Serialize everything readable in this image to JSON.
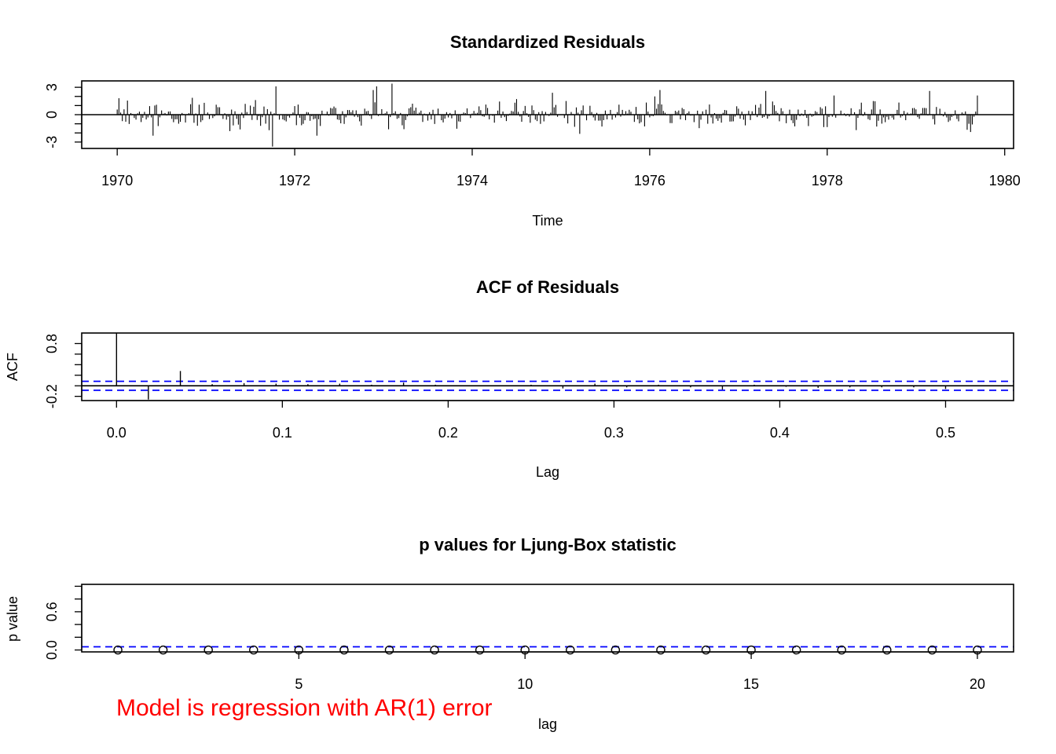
{
  "chart_data": [
    {
      "type": "line",
      "title": "Standardized Residuals",
      "xlabel": "Time",
      "ylabel": "",
      "xlim": [
        1969.6,
        1980.1
      ],
      "ylim": [
        -3.7,
        3.7
      ],
      "xticks": [
        "1970",
        "1972",
        "1974",
        "1976",
        "1978",
        "1980"
      ],
      "yticks": [
        "-3",
        "0",
        "3"
      ],
      "x": {
        "start": 1970.0,
        "end": 1979.7,
        "step": 0.019231
      },
      "series": [
        {
          "style": "vertical-lines-from-zero",
          "color": "#000000",
          "values_description_hint": ""
        }
      ],
      "highlight_spikes": [
        {
          "x": 1970.02,
          "y": 1.8
        },
        {
          "x": 1970.4,
          "y": -2.3
        },
        {
          "x": 1971.26,
          "y": -1.8
        },
        {
          "x": 1971.55,
          "y": 1.6
        },
        {
          "x": 1971.72,
          "y": -1.7
        },
        {
          "x": 1971.75,
          "y": -3.5
        },
        {
          "x": 1971.78,
          "y": 3.1
        },
        {
          "x": 1972.25,
          "y": -2.3
        },
        {
          "x": 1972.88,
          "y": 2.7
        },
        {
          "x": 1972.92,
          "y": 3.1
        },
        {
          "x": 1973.05,
          "y": -1.6
        },
        {
          "x": 1973.1,
          "y": 3.4
        },
        {
          "x": 1974.9,
          "y": 2.4
        },
        {
          "x": 1975.22,
          "y": -2.1
        },
        {
          "x": 1976.05,
          "y": 2.0
        },
        {
          "x": 1976.12,
          "y": 2.7
        },
        {
          "x": 1977.3,
          "y": 2.6
        },
        {
          "x": 1978.08,
          "y": 2.1
        },
        {
          "x": 1979.15,
          "y": 2.6
        },
        {
          "x": 1979.62,
          "y": -1.9
        },
        {
          "x": 1979.7,
          "y": 2.1
        }
      ]
    },
    {
      "type": "bar",
      "title": "ACF of Residuals",
      "xlabel": "Lag",
      "ylabel": "ACF",
      "xlim": [
        -0.021,
        0.541
      ],
      "ylim": [
        -0.28,
        1.0
      ],
      "xticks": [
        "0.0",
        "0.1",
        "0.2",
        "0.3",
        "0.4",
        "0.5"
      ],
      "yticks": [
        "-0.2",
        "0.8"
      ],
      "ci_bound": 0.085,
      "ci_color": "#0000ff",
      "x": [
        0.0,
        0.0192,
        0.0385,
        0.0577,
        0.0769,
        0.0962,
        0.1154,
        0.1346,
        0.1538,
        0.1731,
        0.1923,
        0.2115,
        0.2308,
        0.25,
        0.2692,
        0.2885,
        0.3077,
        0.3269,
        0.3462,
        0.3654,
        0.3846,
        0.4038,
        0.4231,
        0.4423,
        0.4615,
        0.4808,
        0.5
      ],
      "values": [
        1.0,
        -0.26,
        0.28,
        0.03,
        0.05,
        0.04,
        0.03,
        0.04,
        0.02,
        0.06,
        0.02,
        0.01,
        -0.01,
        0.02,
        -0.05,
        0.04,
        -0.03,
        0.02,
        -0.03,
        -0.07,
        0.02,
        -0.02,
        -0.04,
        -0.03,
        -0.03,
        -0.03,
        -0.06
      ]
    },
    {
      "type": "scatter",
      "title": "p values for Ljung-Box statistic",
      "xlabel": "lag",
      "ylabel": "p value",
      "xlim": [
        0.2,
        20.8
      ],
      "ylim": [
        -0.03,
        1.03
      ],
      "xticks": [
        "5",
        "10",
        "15",
        "20"
      ],
      "yticks": [
        "0.0",
        "0.6"
      ],
      "ref_line": 0.05,
      "ref_color": "#0000ff",
      "x": [
        1,
        2,
        3,
        4,
        5,
        6,
        7,
        8,
        9,
        10,
        11,
        12,
        13,
        14,
        15,
        16,
        17,
        18,
        19,
        20
      ],
      "values": [
        0,
        0,
        0,
        0,
        0,
        0,
        0,
        0,
        0,
        0,
        0,
        0,
        0,
        0,
        0,
        0,
        0,
        0,
        0,
        0
      ]
    }
  ],
  "annotation": {
    "text": "Model is regression with AR(1) error",
    "color": "#ff0000"
  }
}
